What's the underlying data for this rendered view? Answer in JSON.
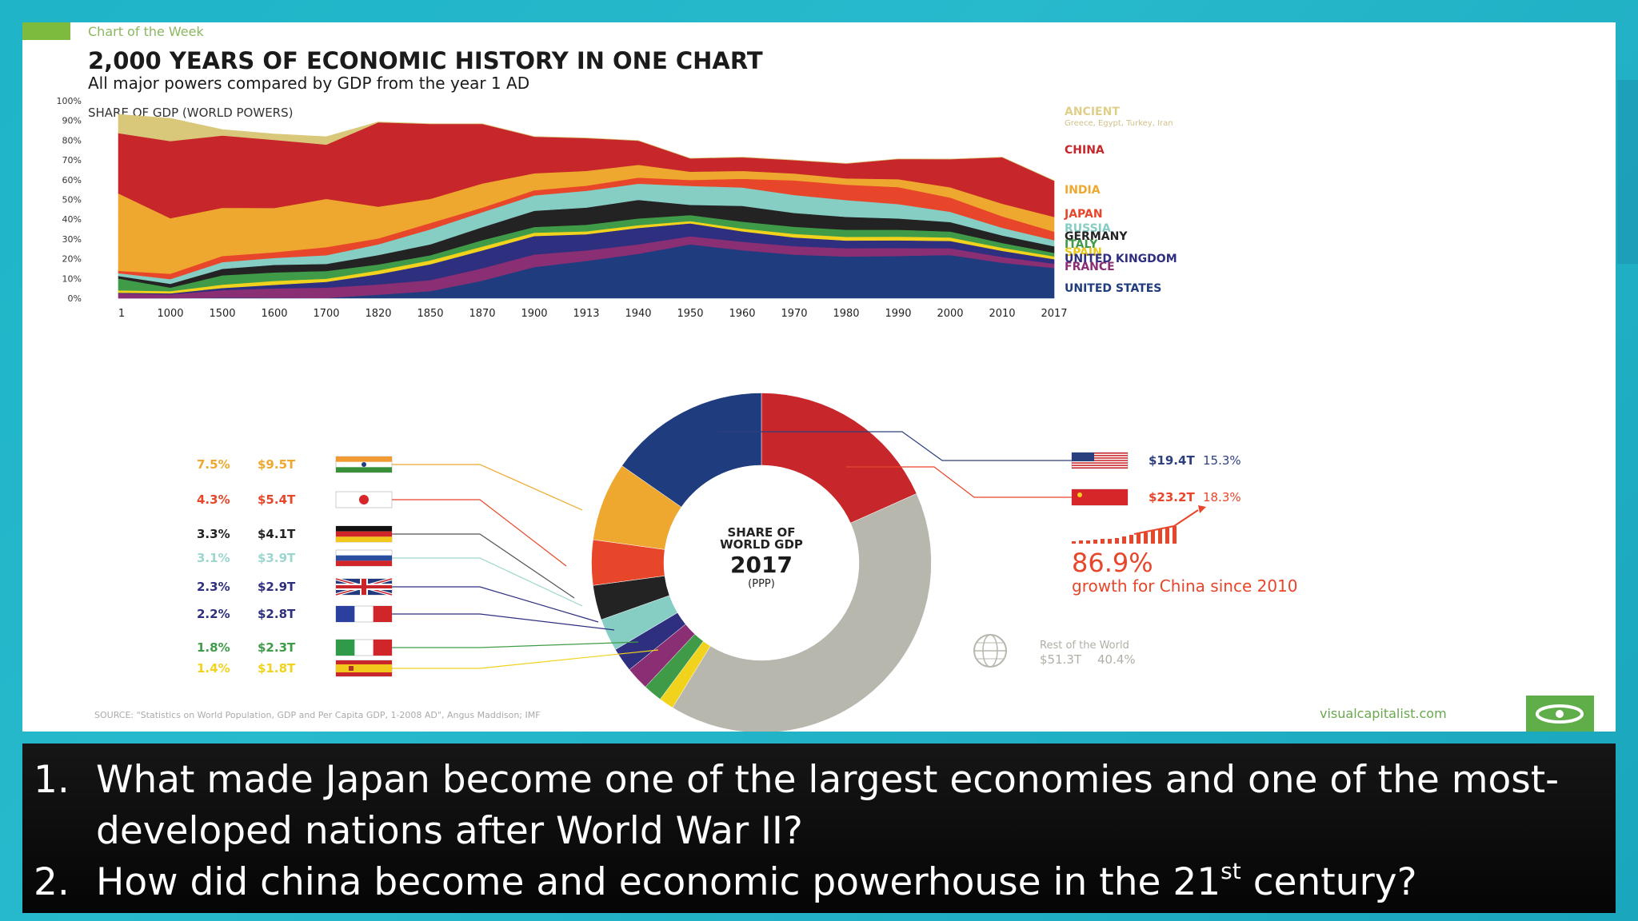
{
  "header": {
    "kicker": "Chart of the Week",
    "title": "2,000 YEARS OF ECONOMIC HISTORY IN ONE CHART",
    "subtitle": "All major powers compared by GDP from the year 1 AD",
    "chart_label": "SHARE OF GDP (WORLD POWERS)"
  },
  "colors": {
    "ancient": "#d9c87a",
    "china": "#c7262a",
    "india": "#efa82f",
    "japan": "#e8462a",
    "russia": "#86cdc4",
    "germany": "#232323",
    "italy": "#3f9b48",
    "spain": "#f1d21c",
    "uk": "#2e2f7f",
    "france": "#8a2f74",
    "us": "#1f3c7e",
    "rest": "#b8b7ad",
    "accent": "#e8462a"
  },
  "chart_data": [
    {
      "type": "area",
      "title": "SHARE OF GDP (WORLD POWERS)",
      "stacked": true,
      "categories": [
        "1",
        "1000",
        "1500",
        "1600",
        "1700",
        "1820",
        "1850",
        "1870",
        "1900",
        "1913",
        "1940",
        "1950",
        "1960",
        "1970",
        "1980",
        "1990",
        "2000",
        "2010",
        "2017"
      ],
      "ylim": [
        0,
        100
      ],
      "y_ticks": [
        "0%",
        "10%",
        "20%",
        "30%",
        "40%",
        "50%",
        "60%",
        "70%",
        "80%",
        "90%",
        "100%"
      ],
      "series": [
        {
          "name": "UNITED STATES",
          "key": "us",
          "values": [
            0,
            0,
            0.3,
            0.2,
            0.1,
            1.8,
            3.6,
            8.9,
            15.8,
            18.9,
            22.5,
            27.3,
            24.3,
            22.1,
            21.1,
            21.4,
            21.9,
            18,
            15.3
          ]
        },
        {
          "name": "FRANCE",
          "key": "france",
          "values": [
            2.5,
            2,
            3.8,
            4.8,
            5.3,
            5.2,
            5.6,
            6.3,
            6.4,
            5.3,
            4.8,
            4.1,
            4.3,
            4.3,
            4.2,
            4,
            3.4,
            2.9,
            2.2
          ]
        },
        {
          "name": "UNITED KINGDOM",
          "key": "uk",
          "values": [
            0.3,
            0.5,
            1.1,
            1.8,
            2.9,
            5.2,
            8,
            9,
            9.3,
            8.2,
            8.3,
            6.5,
            5.3,
            4.4,
            3.9,
            3.9,
            3.7,
            3.1,
            2.3
          ]
        },
        {
          "name": "SPAIN",
          "key": "spain",
          "values": [
            1.2,
            1.1,
            1.7,
            2,
            1.6,
            1.9,
            2,
            2,
            1.7,
            1.5,
            1.4,
            1.2,
            1.4,
            1.8,
            1.9,
            1.9,
            1.8,
            1.6,
            1.4
          ]
        },
        {
          "name": "ITALY",
          "key": "italy",
          "values": [
            6,
            1.8,
            4.7,
            4.3,
            3.9,
            3,
            2.6,
            3.2,
            2.9,
            3.3,
            3.4,
            3,
            3.5,
            3.6,
            3.6,
            3.5,
            3,
            2.4,
            1.8
          ]
        },
        {
          "name": "GERMANY",
          "key": "germany",
          "values": [
            1.3,
            1.9,
            3.3,
            3.8,
            3.6,
            4.8,
            5.5,
            6.6,
            8.2,
            8.7,
            9.4,
            5.2,
            8,
            7,
            6.5,
            5.7,
            4.8,
            3.8,
            3.3
          ]
        },
        {
          "name": "RUSSIA",
          "key": "russia",
          "values": [
            1.4,
            2.4,
            3.4,
            3.5,
            4.4,
            5.4,
            7.6,
            7.6,
            7.8,
            8.5,
            8.2,
            9.6,
            9.3,
            9.1,
            8.5,
            7.3,
            5.2,
            3.9,
            3.1
          ]
        },
        {
          "name": "JAPAN",
          "key": "japan",
          "values": [
            1.2,
            2.7,
            3.1,
            2.9,
            4.1,
            3,
            3.2,
            2.3,
            2.6,
            2.6,
            3.1,
            3,
            4.4,
            7.4,
            7.8,
            8.6,
            7.2,
            5.8,
            4.3
          ]
        },
        {
          "name": "INDIA",
          "key": "india",
          "values": [
            39.2,
            28.1,
            24.4,
            22.4,
            24.4,
            16.1,
            12.2,
            12.2,
            8.6,
            7.5,
            6.5,
            4.2,
            4,
            3.5,
            3.2,
            4,
            5.2,
            6.4,
            7.5
          ]
        },
        {
          "name": "CHINA",
          "key": "china",
          "values": [
            30.5,
            39.1,
            36.6,
            34.5,
            27.5,
            42.7,
            38,
            30.2,
            18.5,
            16.6,
            12.2,
            6.7,
            6.9,
            6.7,
            7.5,
            10.2,
            14.2,
            23.5,
            18.3
          ]
        },
        {
          "name": "ANCIENT",
          "key": "ancient",
          "values": [
            9.5,
            11.5,
            3,
            3,
            4,
            0.2,
            0.1,
            0.1,
            0.1,
            0.1,
            0.1,
            0.1,
            0.1,
            0.1,
            0.1,
            0.1,
            0.1,
            0.1,
            0.1
          ]
        }
      ],
      "legend_note": "Greece, Egypt, Turkey, Iran"
    },
    {
      "type": "pie",
      "title": "SHARE OF WORLD GDP 2017 (PPP)",
      "center": {
        "line1": "SHARE OF",
        "line2": "WORLD GDP",
        "year": "2017",
        "note": "(PPP)"
      },
      "slices": [
        {
          "name": "China",
          "key": "china",
          "percent": 18.3,
          "value": "$23.2T"
        },
        {
          "name": "Rest of the World",
          "key": "rest",
          "percent": 40.4,
          "value": "$51.3T"
        },
        {
          "name": "Spain",
          "key": "spain",
          "percent": 1.4,
          "value": "$1.8T"
        },
        {
          "name": "Italy",
          "key": "italy",
          "percent": 1.8,
          "value": "$2.3T"
        },
        {
          "name": "France",
          "key": "france",
          "percent": 2.2,
          "value": "$2.8T"
        },
        {
          "name": "United Kingdom",
          "key": "uk",
          "percent": 2.3,
          "value": "$2.9T"
        },
        {
          "name": "Russia",
          "key": "russia",
          "percent": 3.1,
          "value": "$3.9T"
        },
        {
          "name": "Germany",
          "key": "germany",
          "percent": 3.3,
          "value": "$4.1T"
        },
        {
          "name": "Japan",
          "key": "japan",
          "percent": 4.3,
          "value": "$5.4T"
        },
        {
          "name": "India",
          "key": "india",
          "percent": 7.5,
          "value": "$9.5T"
        },
        {
          "name": "United States",
          "key": "us",
          "percent": 15.3,
          "value": "$19.4T"
        }
      ]
    }
  ],
  "legend_right": [
    {
      "label": "ANCIENT",
      "sub": "Greece, Egypt, Turkey, Iran",
      "key": "ancient"
    },
    {
      "label": "CHINA",
      "key": "china"
    },
    {
      "label": "INDIA",
      "key": "india"
    },
    {
      "label": "JAPAN",
      "key": "japan"
    },
    {
      "label": "RUSSIA",
      "key": "russia"
    },
    {
      "label": "GERMANY",
      "key": "germany"
    },
    {
      "label": "ITALY",
      "key": "italy"
    },
    {
      "label": "SPAIN",
      "key": "spain"
    },
    {
      "label": "UNITED KINGDOM",
      "key": "uk"
    },
    {
      "label": "FRANCE",
      "key": "france"
    },
    {
      "label": "UNITED STATES",
      "key": "us"
    }
  ],
  "left_labels": [
    {
      "percent": "7.5%",
      "value": "$9.5T",
      "key": "india",
      "flag": "india-flag"
    },
    {
      "percent": "4.3%",
      "value": "$5.4T",
      "key": "japan",
      "flag": "japan-flag"
    },
    {
      "percent": "3.3%",
      "value": "$4.1T",
      "key": "germany",
      "flag": "germany-flag"
    },
    {
      "percent": "3.1%",
      "value": "$3.9T",
      "key": "russia",
      "flag": "russia-flag"
    },
    {
      "percent": "2.3%",
      "value": "$2.9T",
      "key": "uk",
      "flag": "uk-flag"
    },
    {
      "percent": "2.2%",
      "value": "$2.8T",
      "key": "france",
      "flag": "france-flag"
    },
    {
      "percent": "1.8%",
      "value": "$2.3T",
      "key": "italy",
      "flag": "italy-flag"
    },
    {
      "percent": "1.4%",
      "value": "$1.8T",
      "key": "spain",
      "flag": "spain-flag"
    }
  ],
  "right_labels": [
    {
      "value": "$19.4T",
      "percent": "15.3%",
      "flag": "us-flag"
    },
    {
      "value": "$23.2T",
      "percent": "18.3%",
      "flag": "china-flag"
    }
  ],
  "china_growth": {
    "value": "86.9%",
    "caption": "growth for China since 2010"
  },
  "rest_of_world": {
    "label": "Rest of the World",
    "value": "$51.3T",
    "percent": "40.4%"
  },
  "footer": {
    "source": "SOURCE: \"Statistics on World Population, GDP and Per Capita GDP, 1-2008 AD\", Angus Maddison; IMF",
    "brand": "visualcapitalist.com"
  },
  "questions": {
    "q1_num": "1.",
    "q1": "What made Japan become one of the largest economies and one of the most-developed nations after World War II?",
    "q2_num": "2.",
    "q2_pre": "How did china become and economic powerhouse in the 21",
    "q2_sup": "st",
    "q2_post": " century?"
  }
}
